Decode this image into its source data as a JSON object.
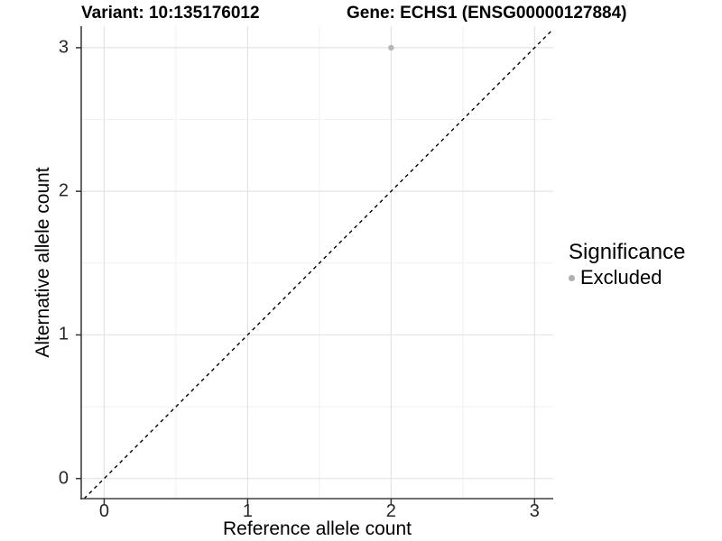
{
  "chart_data": {
    "type": "scatter",
    "title_left": "Variant: 10:135176012",
    "title_right": "Gene: ECHS1 (ENSG00000127884)",
    "xlabel": "Reference allele count",
    "ylabel": "Alternative allele count",
    "x_ticks": [
      0,
      1,
      2,
      3
    ],
    "y_ticks": [
      0,
      1,
      2,
      3
    ],
    "x_minor_gridlines": [
      0.5,
      1.5,
      2.5
    ],
    "y_minor_gridlines": [
      0.5,
      1.5,
      2.5
    ],
    "xlim": [
      -0.16,
      3.13
    ],
    "ylim": [
      -0.14,
      3.15
    ],
    "grid": "on",
    "legend_position": "right",
    "series": [
      {
        "name": "Excluded",
        "color": "#b5b5b5",
        "points": [
          {
            "x": 2,
            "y": 3
          }
        ]
      }
    ],
    "reference_line": {
      "kind": "identity y = x",
      "slope": 1,
      "intercept": 0,
      "style": "dashed",
      "color": "#000000"
    }
  },
  "legend": {
    "title": "Significance",
    "items": [
      {
        "label": "Excluded",
        "color": "#b0b0b0",
        "marker": "circle"
      }
    ]
  },
  "colors": {
    "background": "#ffffff",
    "grid_major": "#e4e4e4",
    "grid_minor": "#f1f1f1",
    "axis_line": "#404040",
    "tick_mark": "#333333",
    "tick_text": "#262626",
    "title_text": "#000000"
  }
}
